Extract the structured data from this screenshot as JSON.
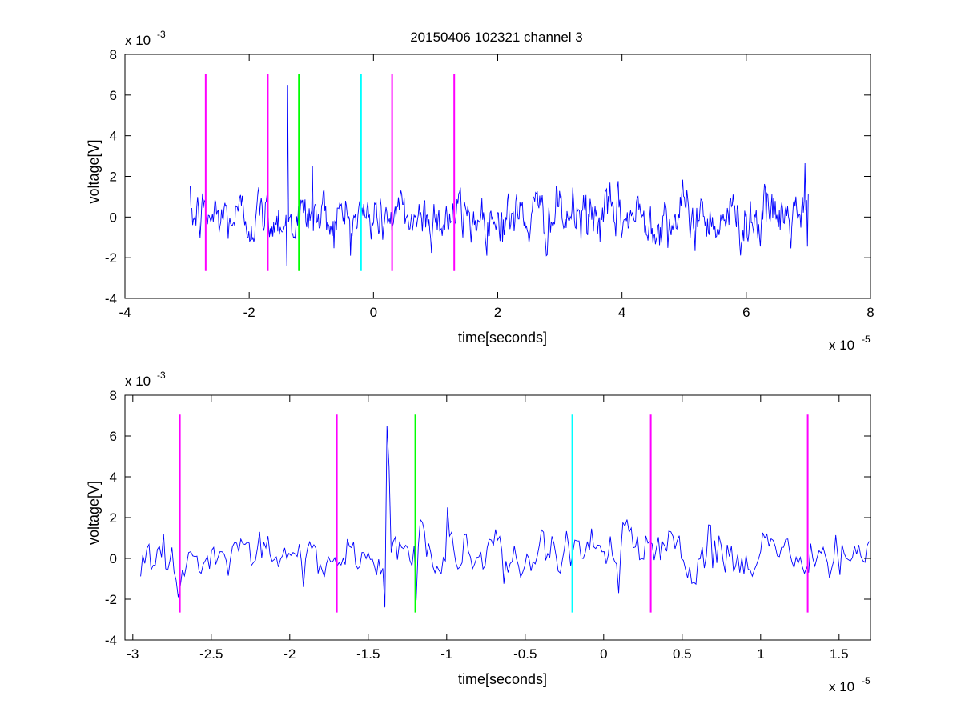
{
  "figure": {
    "title": "20150406 102321 channel 3"
  },
  "chart_data": [
    {
      "type": "line",
      "title": "20150406 102321 channel 3",
      "xlabel": "time[seconds]",
      "ylabel": "voltage[V]",
      "x_exponent_label": "x 10",
      "x_exponent_power": "-5",
      "y_exponent_label": "x 10",
      "y_exponent_power": "-3",
      "xlim": [
        -4,
        8
      ],
      "ylim": [
        -4,
        8
      ],
      "xticks": [
        -4,
        -2,
        0,
        2,
        4,
        6,
        8
      ],
      "xtick_labels": [
        "-4",
        "-2",
        "0",
        "2",
        "4",
        "6",
        "8"
      ],
      "yticks": [
        -4,
        -2,
        0,
        2,
        4,
        6,
        8
      ],
      "ytick_labels": [
        "-4",
        "-2",
        "0",
        "2",
        "4",
        "6",
        "8"
      ],
      "grid": false,
      "signal": {
        "color": "#0000ff",
        "x_start": -2.95,
        "x_end": 7.0,
        "baseline_std": 0.65,
        "spikes": [
          {
            "x": -1.38,
            "y": 6.5
          },
          {
            "x": -1.4,
            "y": -2.4
          },
          {
            "x": -1.2,
            "y": -2.05
          },
          {
            "x": -0.98,
            "y": 2.5
          },
          {
            "x": 6.95,
            "y": 2.65
          },
          {
            "x": 6.98,
            "y": -1.45
          }
        ]
      },
      "markers": [
        {
          "x": -2.7,
          "color": "#ff00ff",
          "y_range": [
            -2.65,
            7.05
          ]
        },
        {
          "x": -1.7,
          "color": "#ff00ff",
          "y_range": [
            -2.65,
            7.05
          ]
        },
        {
          "x": -1.2,
          "color": "#00ff00",
          "y_range": [
            -2.65,
            7.05
          ]
        },
        {
          "x": -0.2,
          "color": "#00ffff",
          "y_range": [
            -2.65,
            7.05
          ]
        },
        {
          "x": 0.3,
          "color": "#ff00ff",
          "y_range": [
            -2.65,
            7.05
          ]
        },
        {
          "x": 1.3,
          "color": "#ff00ff",
          "y_range": [
            -2.65,
            7.05
          ]
        }
      ]
    },
    {
      "type": "line",
      "title": "",
      "xlabel": "time[seconds]",
      "ylabel": "voltage[V]",
      "x_exponent_label": "x 10",
      "x_exponent_power": "-5",
      "y_exponent_label": "x 10",
      "y_exponent_power": "-3",
      "xlim": [
        -3.05,
        1.7
      ],
      "ylim": [
        -4,
        8
      ],
      "xticks": [
        -3,
        -2.5,
        -2,
        -1.5,
        -1,
        -0.5,
        0,
        0.5,
        1,
        1.5
      ],
      "xtick_labels": [
        "-3",
        "-2.5",
        "-2",
        "-1.5",
        "-1",
        "-0.5",
        "0",
        "0.5",
        "1",
        "1.5"
      ],
      "yticks": [
        -4,
        -2,
        0,
        2,
        4,
        6,
        8
      ],
      "ytick_labels": [
        "-4",
        "-2",
        "0",
        "2",
        "4",
        "6",
        "8"
      ],
      "grid": false,
      "signal": {
        "color": "#0000ff",
        "x_start": -2.95,
        "x_end": 1.7,
        "baseline_std": 0.65,
        "spikes": [
          {
            "x": -1.38,
            "y": 6.5
          },
          {
            "x": -1.365,
            "y": 4.5
          },
          {
            "x": -1.4,
            "y": -2.4
          },
          {
            "x": -1.2,
            "y": -2.05
          },
          {
            "x": -1.0,
            "y": 2.5
          }
        ]
      },
      "markers": [
        {
          "x": -2.7,
          "color": "#ff00ff",
          "y_range": [
            -2.65,
            7.05
          ]
        },
        {
          "x": -1.7,
          "color": "#ff00ff",
          "y_range": [
            -2.65,
            7.05
          ]
        },
        {
          "x": -1.2,
          "color": "#00ff00",
          "y_range": [
            -2.65,
            7.05
          ]
        },
        {
          "x": -0.2,
          "color": "#00ffff",
          "y_range": [
            -2.65,
            7.05
          ]
        },
        {
          "x": 0.3,
          "color": "#ff00ff",
          "y_range": [
            -2.65,
            7.05
          ]
        },
        {
          "x": 1.3,
          "color": "#ff00ff",
          "y_range": [
            -2.65,
            7.05
          ]
        }
      ]
    }
  ]
}
